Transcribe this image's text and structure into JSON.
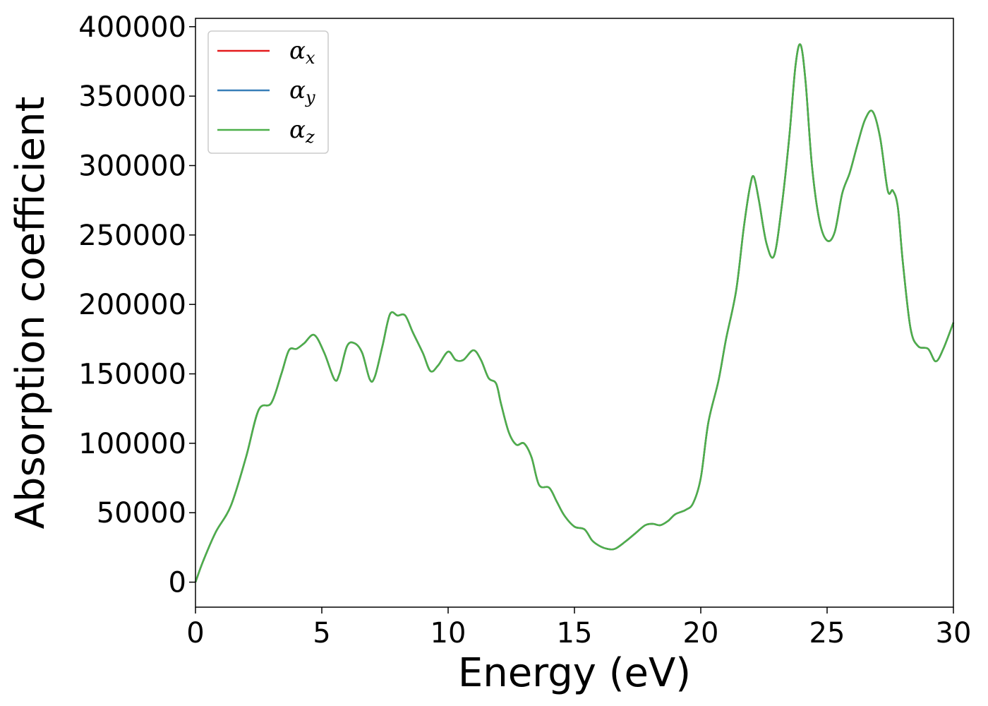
{
  "chart_data": {
    "type": "line",
    "title": "",
    "xlabel": "Energy (eV)",
    "ylabel": "Absorption coefficient",
    "xlim": [
      0,
      30
    ],
    "ylim": [
      -18000,
      406000
    ],
    "xticks": [
      0,
      5,
      10,
      15,
      20,
      25,
      30
    ],
    "xtick_labels": [
      "0",
      "5",
      "10",
      "15",
      "20",
      "25",
      "30"
    ],
    "yticks": [
      0,
      50000,
      100000,
      150000,
      200000,
      250000,
      300000,
      350000,
      400000
    ],
    "ytick_labels": [
      "0",
      "50000",
      "100000",
      "150000",
      "200000",
      "250000",
      "300000",
      "350000",
      "400000"
    ],
    "grid": false,
    "legend_position": "top-left",
    "series": [
      {
        "name": "αx",
        "symbol": "α",
        "subscript": "x",
        "color": "#e41a1c",
        "x": [
          0,
          0.3,
          0.8,
          1.4,
          2.0,
          2.5,
          3.0,
          3.4,
          3.7,
          4.0,
          4.3,
          4.7,
          5.1,
          5.5,
          5.7,
          6.0,
          6.3,
          6.6,
          6.9,
          7.1,
          7.4,
          7.7,
          8.0,
          8.3,
          8.6,
          9.0,
          9.3,
          9.6,
          10.0,
          10.3,
          10.6,
          11.0,
          11.3,
          11.6,
          11.9,
          12.1,
          12.4,
          12.7,
          13.0,
          13.3,
          13.6,
          14.0,
          14.3,
          14.6,
          15.0,
          15.4,
          15.7,
          16.0,
          16.3,
          16.6,
          17.0,
          17.4,
          17.8,
          18.1,
          18.4,
          18.7,
          19.0,
          19.4,
          19.7,
          20.0,
          20.3,
          20.7,
          21.0,
          21.4,
          21.7,
          21.95,
          22.1,
          22.3,
          22.6,
          22.9,
          23.2,
          23.5,
          23.75,
          23.95,
          24.15,
          24.4,
          24.7,
          25.0,
          25.3,
          25.6,
          25.9,
          26.2,
          26.5,
          26.8,
          27.1,
          27.4,
          27.6,
          27.8,
          28.0,
          28.3,
          28.6,
          29.0,
          29.3,
          29.6,
          30.0
        ],
        "values": [
          0,
          15000,
          36000,
          55000,
          90000,
          124000,
          129000,
          150000,
          167000,
          168000,
          172000,
          178000,
          165000,
          146000,
          150000,
          170000,
          172000,
          165000,
          146000,
          148000,
          170000,
          193000,
          192000,
          192000,
          180000,
          165000,
          152000,
          156000,
          166000,
          160000,
          160000,
          167000,
          160000,
          147000,
          143000,
          128000,
          108000,
          99000,
          100000,
          90000,
          70000,
          68000,
          58000,
          48000,
          40000,
          38000,
          30000,
          26000,
          24000,
          24000,
          29000,
          35000,
          41000,
          42000,
          41000,
          44000,
          49000,
          52000,
          57000,
          75000,
          115000,
          145000,
          175000,
          210000,
          255000,
          285000,
          292000,
          275000,
          244000,
          235000,
          270000,
          320000,
          372000,
          387000,
          360000,
          300000,
          260000,
          246000,
          252000,
          280000,
          295000,
          315000,
          333000,
          339000,
          320000,
          282000,
          282000,
          270000,
          230000,
          183000,
          170000,
          168000,
          159000,
          168000,
          187000
        ]
      },
      {
        "name": "αy",
        "symbol": "α",
        "subscript": "y",
        "color": "#377eb8",
        "x": [
          0,
          0.3,
          0.8,
          1.4,
          2.0,
          2.5,
          3.0,
          3.4,
          3.7,
          4.0,
          4.3,
          4.7,
          5.1,
          5.5,
          5.7,
          6.0,
          6.3,
          6.6,
          6.9,
          7.1,
          7.4,
          7.7,
          8.0,
          8.3,
          8.6,
          9.0,
          9.3,
          9.6,
          10.0,
          10.3,
          10.6,
          11.0,
          11.3,
          11.6,
          11.9,
          12.1,
          12.4,
          12.7,
          13.0,
          13.3,
          13.6,
          14.0,
          14.3,
          14.6,
          15.0,
          15.4,
          15.7,
          16.0,
          16.3,
          16.6,
          17.0,
          17.4,
          17.8,
          18.1,
          18.4,
          18.7,
          19.0,
          19.4,
          19.7,
          20.0,
          20.3,
          20.7,
          21.0,
          21.4,
          21.7,
          21.95,
          22.1,
          22.3,
          22.6,
          22.9,
          23.2,
          23.5,
          23.75,
          23.95,
          24.15,
          24.4,
          24.7,
          25.0,
          25.3,
          25.6,
          25.9,
          26.2,
          26.5,
          26.8,
          27.1,
          27.4,
          27.6,
          27.8,
          28.0,
          28.3,
          28.6,
          29.0,
          29.3,
          29.6,
          30.0
        ],
        "values": [
          0,
          15000,
          36000,
          55000,
          90000,
          124000,
          129000,
          150000,
          167000,
          168000,
          172000,
          178000,
          165000,
          146000,
          150000,
          170000,
          172000,
          165000,
          146000,
          148000,
          170000,
          193000,
          192000,
          192000,
          180000,
          165000,
          152000,
          156000,
          166000,
          160000,
          160000,
          167000,
          160000,
          147000,
          143000,
          128000,
          108000,
          99000,
          100000,
          90000,
          70000,
          68000,
          58000,
          48000,
          40000,
          38000,
          30000,
          26000,
          24000,
          24000,
          29000,
          35000,
          41000,
          42000,
          41000,
          44000,
          49000,
          52000,
          57000,
          75000,
          115000,
          145000,
          175000,
          210000,
          255000,
          285000,
          292000,
          275000,
          244000,
          235000,
          270000,
          320000,
          372000,
          387000,
          360000,
          300000,
          260000,
          246000,
          252000,
          280000,
          295000,
          315000,
          333000,
          339000,
          320000,
          282000,
          282000,
          270000,
          230000,
          183000,
          170000,
          168000,
          159000,
          168000,
          187000
        ]
      },
      {
        "name": "αz",
        "symbol": "α",
        "subscript": "z",
        "color": "#4daf4a",
        "x": [
          0,
          0.3,
          0.8,
          1.4,
          2.0,
          2.5,
          3.0,
          3.4,
          3.7,
          4.0,
          4.3,
          4.7,
          5.1,
          5.5,
          5.7,
          6.0,
          6.3,
          6.6,
          6.9,
          7.1,
          7.4,
          7.7,
          8.0,
          8.3,
          8.6,
          9.0,
          9.3,
          9.6,
          10.0,
          10.3,
          10.6,
          11.0,
          11.3,
          11.6,
          11.9,
          12.1,
          12.4,
          12.7,
          13.0,
          13.3,
          13.6,
          14.0,
          14.3,
          14.6,
          15.0,
          15.4,
          15.7,
          16.0,
          16.3,
          16.6,
          17.0,
          17.4,
          17.8,
          18.1,
          18.4,
          18.7,
          19.0,
          19.4,
          19.7,
          20.0,
          20.3,
          20.7,
          21.0,
          21.4,
          21.7,
          21.95,
          22.1,
          22.3,
          22.6,
          22.9,
          23.2,
          23.5,
          23.75,
          23.95,
          24.15,
          24.4,
          24.7,
          25.0,
          25.3,
          25.6,
          25.9,
          26.2,
          26.5,
          26.8,
          27.1,
          27.4,
          27.6,
          27.8,
          28.0,
          28.3,
          28.6,
          29.0,
          29.3,
          29.6,
          30.0
        ],
        "values": [
          0,
          15000,
          36000,
          55000,
          90000,
          124000,
          129000,
          150000,
          167000,
          168000,
          172000,
          178000,
          165000,
          146000,
          150000,
          170000,
          172000,
          165000,
          146000,
          148000,
          170000,
          193000,
          192000,
          192000,
          180000,
          165000,
          152000,
          156000,
          166000,
          160000,
          160000,
          167000,
          160000,
          147000,
          143000,
          128000,
          108000,
          99000,
          100000,
          90000,
          70000,
          68000,
          58000,
          48000,
          40000,
          38000,
          30000,
          26000,
          24000,
          24000,
          29000,
          35000,
          41000,
          42000,
          41000,
          44000,
          49000,
          52000,
          57000,
          75000,
          115000,
          145000,
          175000,
          210000,
          255000,
          285000,
          292000,
          275000,
          244000,
          235000,
          270000,
          320000,
          372000,
          387000,
          360000,
          300000,
          260000,
          246000,
          252000,
          280000,
          295000,
          315000,
          333000,
          339000,
          320000,
          282000,
          282000,
          270000,
          230000,
          183000,
          170000,
          168000,
          159000,
          168000,
          187000
        ]
      }
    ]
  }
}
